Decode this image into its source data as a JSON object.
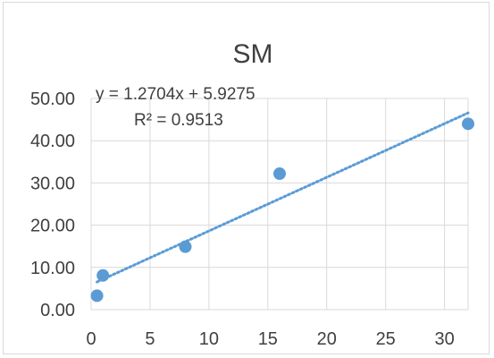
{
  "chart_data": {
    "type": "scatter",
    "title": "SM",
    "xlabel": "",
    "ylabel": "",
    "xlim": [
      0,
      32
    ],
    "ylim": [
      0,
      50
    ],
    "x_ticks": [
      0,
      5,
      10,
      15,
      20,
      25,
      30
    ],
    "y_ticks": [
      0,
      10,
      20,
      30,
      40,
      50
    ],
    "x_tick_labels": [
      "0",
      "5",
      "10",
      "15",
      "20",
      "25",
      "30"
    ],
    "y_tick_labels": [
      "0.00",
      "10.00",
      "20.00",
      "30.00",
      "40.00",
      "50.00"
    ],
    "grid": true,
    "legend": "none",
    "series": [
      {
        "x": [
          0.5,
          1,
          8,
          16,
          32
        ],
        "y": [
          3.3,
          8.1,
          14.9,
          32.2,
          44.0
        ],
        "color": "#5b9bd5"
      }
    ],
    "trendline": {
      "type": "linear",
      "slope": 1.2704,
      "intercept": 5.9275,
      "style": "dotted",
      "color": "#5b9bd5",
      "equation_label": "y = 1.2704x + 5.9275",
      "r2_label": "R² = 0.9513"
    }
  }
}
